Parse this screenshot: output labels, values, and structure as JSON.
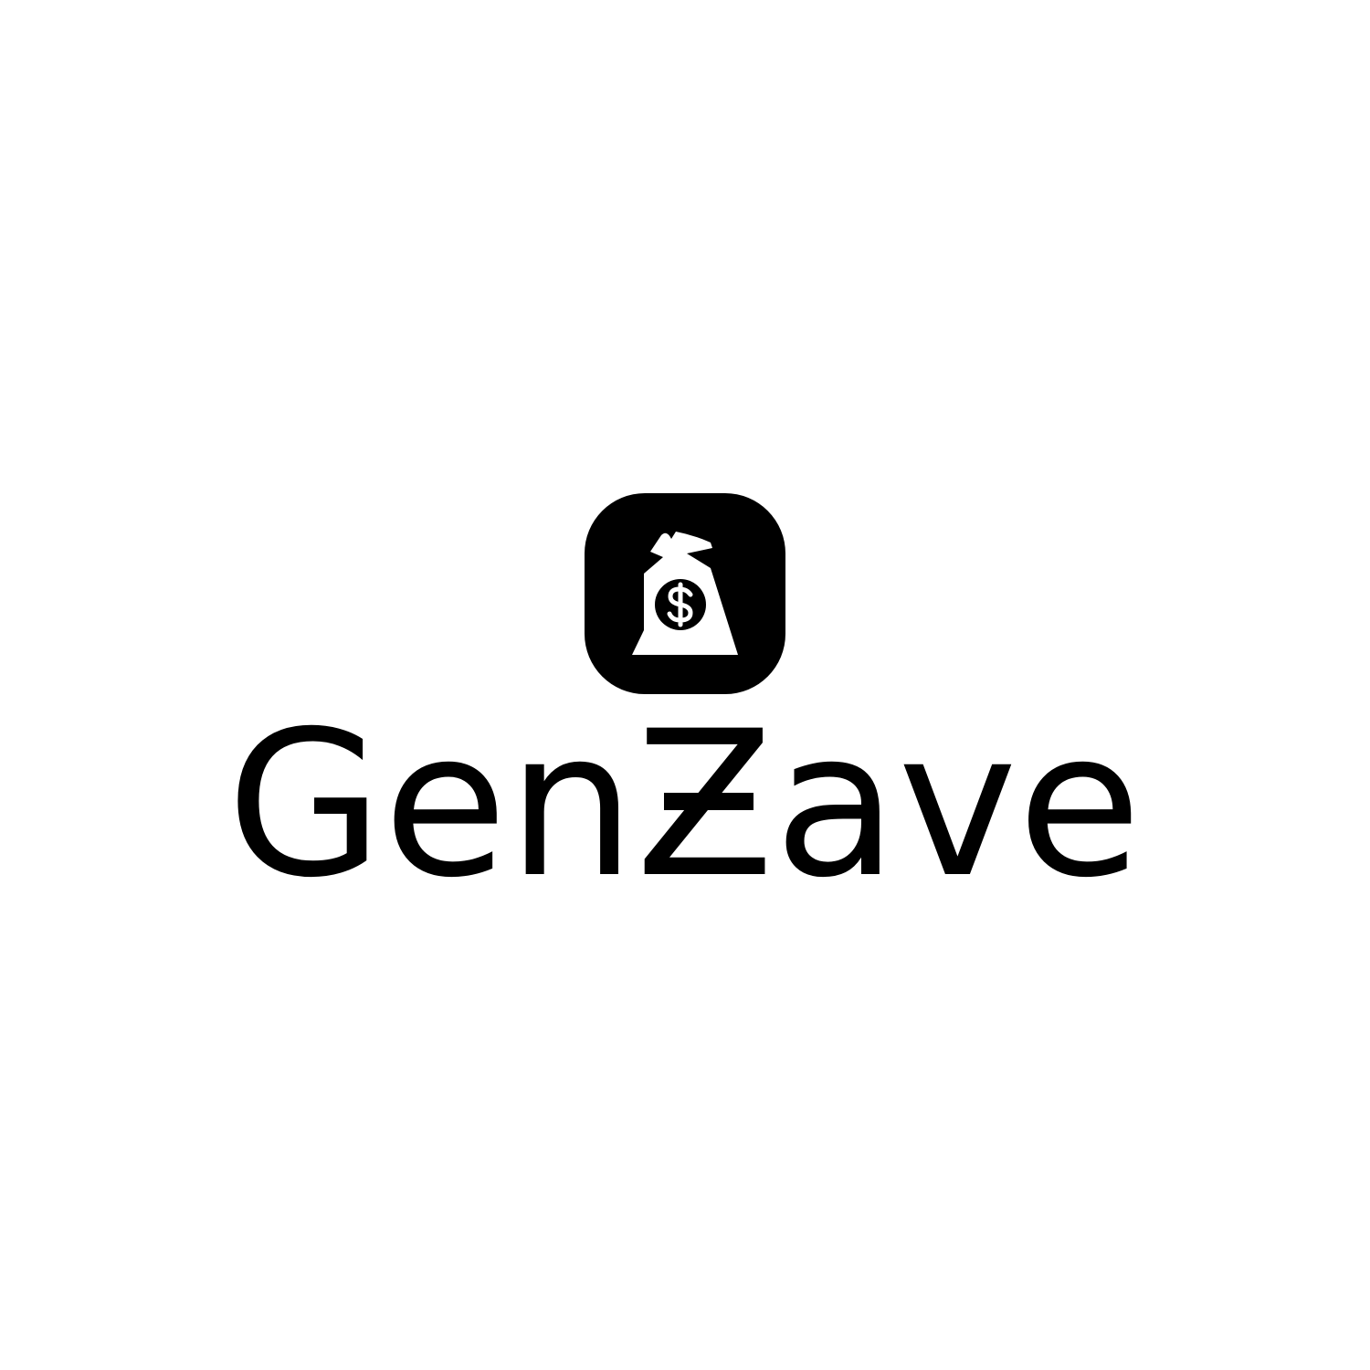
{
  "logo": {
    "name": "GenZave"
  }
}
